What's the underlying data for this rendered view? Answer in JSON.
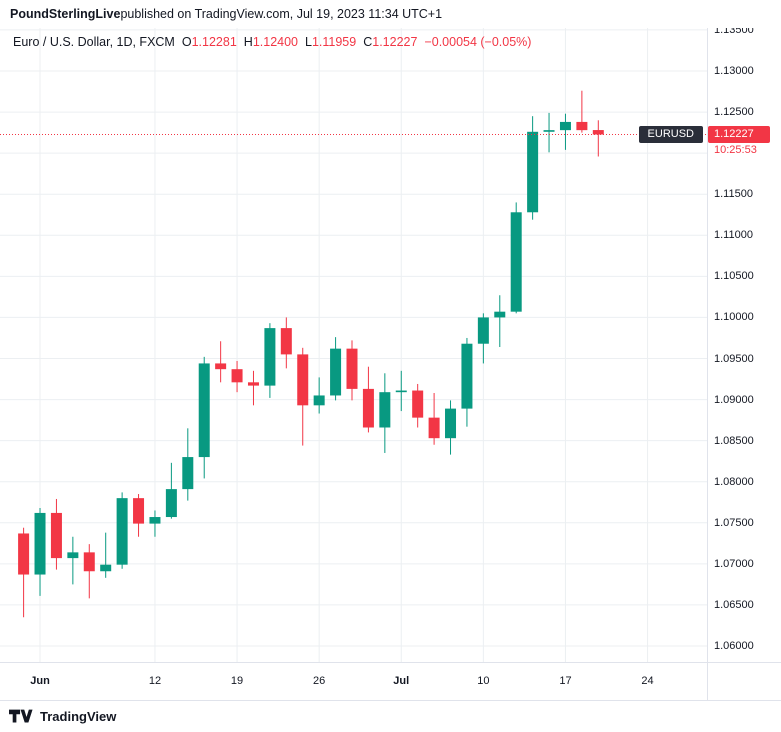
{
  "colors": {
    "up": "#089981",
    "down": "#f23645",
    "accent_red": "#f23645",
    "text": "#131722",
    "grid": "#eceff2",
    "axis_border": "#e0e3eb",
    "badge_bg": "#2a2e39"
  },
  "header": {
    "source": "PoundSterlingLive",
    "rest": " published on TradingView.com, Jul 19, 2023 11:34 UTC+1"
  },
  "legend": {
    "symbol_title": "Euro / U.S. Dollar, 1D, FXCM",
    "ohlc": [
      {
        "label": "O",
        "value": "1.12281"
      },
      {
        "label": "H",
        "value": "1.12400"
      },
      {
        "label": "L",
        "value": "1.11959"
      },
      {
        "label": "C",
        "value": "1.12227"
      }
    ],
    "change": "−0.00054 (−0.05%)"
  },
  "current_price": {
    "symbol": "EURUSD",
    "label": "1.12227",
    "countdown": "10:25:53",
    "value": 1.12227
  },
  "price_axis": {
    "ticks": [
      {
        "price": 1.135,
        "label": "1.13500"
      },
      {
        "price": 1.13,
        "label": "1.13000"
      },
      {
        "price": 1.125,
        "label": "1.12500"
      },
      {
        "price": 1.12,
        "label": ""
      },
      {
        "price": 1.115,
        "label": "1.11500"
      },
      {
        "price": 1.11,
        "label": "1.11000"
      },
      {
        "price": 1.105,
        "label": "1.10500"
      },
      {
        "price": 1.1,
        "label": "1.10000"
      },
      {
        "price": 1.095,
        "label": "1.09500"
      },
      {
        "price": 1.09,
        "label": "1.09000"
      },
      {
        "price": 1.085,
        "label": "1.08500"
      },
      {
        "price": 1.08,
        "label": "1.08000"
      },
      {
        "price": 1.075,
        "label": "1.07500"
      },
      {
        "price": 1.07,
        "label": "1.07000"
      },
      {
        "price": 1.065,
        "label": "1.06500"
      },
      {
        "price": 1.06,
        "label": "1.06000"
      }
    ]
  },
  "time_axis": {
    "labels": [
      {
        "text": "Jun",
        "index": 1,
        "month": true
      },
      {
        "text": "12",
        "index": 8
      },
      {
        "text": "19",
        "index": 13
      },
      {
        "text": "26",
        "index": 18
      },
      {
        "text": "Jul",
        "index": 23,
        "month": true
      },
      {
        "text": "10",
        "index": 28
      },
      {
        "text": "17",
        "index": 33
      },
      {
        "text": "24",
        "index": 38
      }
    ]
  },
  "footer": {
    "brand": "TradingView"
  },
  "chart_data": {
    "type": "candlestick",
    "title": "Euro / U.S. Dollar, 1D, FXCM",
    "symbol": "EURUSD",
    "interval": "1D",
    "ylim": [
      1.058,
      1.1352
    ],
    "grid_step": 0.005,
    "legend_position": "top-left",
    "grid": true,
    "up_color": "#089981",
    "down_color": "#f23645",
    "current_price": 1.12227,
    "candles": [
      {
        "date": "May 31",
        "o": 1.0737,
        "h": 1.0744,
        "l": 1.0635,
        "c": 1.0687
      },
      {
        "date": "Jun 1",
        "o": 1.0687,
        "h": 1.0768,
        "l": 1.0661,
        "c": 1.0762
      },
      {
        "date": "Jun 2",
        "o": 1.0762,
        "h": 1.0779,
        "l": 1.0693,
        "c": 1.0707
      },
      {
        "date": "Jun 5",
        "o": 1.0707,
        "h": 1.0733,
        "l": 1.0675,
        "c": 1.0714
      },
      {
        "date": "Jun 6",
        "o": 1.0714,
        "h": 1.0724,
        "l": 1.0658,
        "c": 1.0691
      },
      {
        "date": "Jun 7",
        "o": 1.0691,
        "h": 1.0738,
        "l": 1.0683,
        "c": 1.0699
      },
      {
        "date": "Jun 8",
        "o": 1.0699,
        "h": 1.0787,
        "l": 1.0694,
        "c": 1.078
      },
      {
        "date": "Jun 9",
        "o": 1.078,
        "h": 1.0785,
        "l": 1.0733,
        "c": 1.0749
      },
      {
        "date": "Jun 12",
        "o": 1.0749,
        "h": 1.0765,
        "l": 1.0733,
        "c": 1.0757
      },
      {
        "date": "Jun 13",
        "o": 1.0757,
        "h": 1.0823,
        "l": 1.0755,
        "c": 1.0791
      },
      {
        "date": "Jun 14",
        "o": 1.0791,
        "h": 1.0865,
        "l": 1.0777,
        "c": 1.083
      },
      {
        "date": "Jun 15",
        "o": 1.083,
        "h": 1.0952,
        "l": 1.0804,
        "c": 1.0944
      },
      {
        "date": "Jun 16",
        "o": 1.0944,
        "h": 1.0971,
        "l": 1.0921,
        "c": 1.0937
      },
      {
        "date": "Jun 19",
        "o": 1.0937,
        "h": 1.0947,
        "l": 1.0909,
        "c": 1.0921
      },
      {
        "date": "Jun 20",
        "o": 1.0921,
        "h": 1.0935,
        "l": 1.0893,
        "c": 1.0917
      },
      {
        "date": "Jun 21",
        "o": 1.0917,
        "h": 1.0993,
        "l": 1.0902,
        "c": 1.0987
      },
      {
        "date": "Jun 22",
        "o": 1.0987,
        "h": 1.1,
        "l": 1.0938,
        "c": 1.0955
      },
      {
        "date": "Jun 23",
        "o": 1.0955,
        "h": 1.0963,
        "l": 1.0844,
        "c": 1.0893
      },
      {
        "date": "Jun 26",
        "o": 1.0893,
        "h": 1.0927,
        "l": 1.0883,
        "c": 1.0905
      },
      {
        "date": "Jun 27",
        "o": 1.0905,
        "h": 1.0976,
        "l": 1.0899,
        "c": 1.0962
      },
      {
        "date": "Jun 28",
        "o": 1.0962,
        "h": 1.0972,
        "l": 1.0899,
        "c": 1.0913
      },
      {
        "date": "Jun 29",
        "o": 1.0913,
        "h": 1.094,
        "l": 1.086,
        "c": 1.0866
      },
      {
        "date": "Jun 30",
        "o": 1.0866,
        "h": 1.0932,
        "l": 1.0835,
        "c": 1.0909
      },
      {
        "date": "Jul 3",
        "o": 1.0909,
        "h": 1.0935,
        "l": 1.0886,
        "c": 1.0911
      },
      {
        "date": "Jul 4",
        "o": 1.0911,
        "h": 1.0919,
        "l": 1.0866,
        "c": 1.0878
      },
      {
        "date": "Jul 5",
        "o": 1.0878,
        "h": 1.0908,
        "l": 1.0845,
        "c": 1.0853
      },
      {
        "date": "Jul 6",
        "o": 1.0853,
        "h": 1.0899,
        "l": 1.0833,
        "c": 1.0889
      },
      {
        "date": "Jul 7",
        "o": 1.0889,
        "h": 1.0975,
        "l": 1.0867,
        "c": 1.0968
      },
      {
        "date": "Jul 10",
        "o": 1.0968,
        "h": 1.1005,
        "l": 1.0944,
        "c": 1.1
      },
      {
        "date": "Jul 11",
        "o": 1.1,
        "h": 1.1027,
        "l": 1.0964,
        "c": 1.1007
      },
      {
        "date": "Jul 12",
        "o": 1.1007,
        "h": 1.114,
        "l": 1.1005,
        "c": 1.1128
      },
      {
        "date": "Jul 13",
        "o": 1.1128,
        "h": 1.1245,
        "l": 1.1119,
        "c": 1.1226
      },
      {
        "date": "Jul 14",
        "o": 1.1226,
        "h": 1.1249,
        "l": 1.1201,
        "c": 1.1228
      },
      {
        "date": "Jul 17",
        "o": 1.1228,
        "h": 1.1248,
        "l": 1.1204,
        "c": 1.1238
      },
      {
        "date": "Jul 18",
        "o": 1.1238,
        "h": 1.1276,
        "l": 1.1225,
        "c": 1.1228
      },
      {
        "date": "Jul 19",
        "o": 1.12281,
        "h": 1.124,
        "l": 1.11959,
        "c": 1.12227
      }
    ]
  }
}
